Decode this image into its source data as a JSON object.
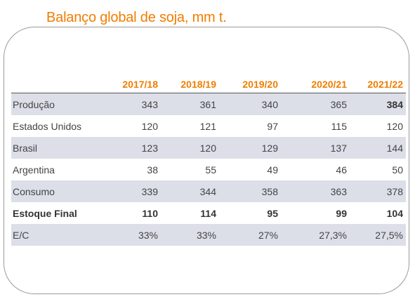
{
  "title": "Balanço global de soja, mm t.",
  "headers": [
    "",
    "2017/18",
    "2018/19",
    "2019/20",
    "2020/21",
    "2021/22"
  ],
  "rows": [
    {
      "label": "Produção",
      "values": [
        "343",
        "361",
        "340",
        "365",
        "384"
      ]
    },
    {
      "label": "Estados Unidos",
      "values": [
        "120",
        "121",
        "97",
        "115",
        "120"
      ]
    },
    {
      "label": "Brasil",
      "values": [
        "123",
        "120",
        "129",
        "137",
        "144"
      ]
    },
    {
      "label": "Argentina",
      "values": [
        "38",
        "55",
        "49",
        "46",
        "50"
      ]
    },
    {
      "label": "Consumo",
      "values": [
        "339",
        "344",
        "358",
        "363",
        "378"
      ]
    },
    {
      "label": "Estoque Final",
      "values": [
        "110",
        "114",
        "95",
        "99",
        "104"
      ]
    },
    {
      "label": "E/C",
      "values": [
        "33%",
        "33%",
        "27%",
        "27,3%",
        "27,5%"
      ]
    }
  ],
  "colors": {
    "accent": "#f07d00",
    "shade": "#dcdfe8"
  }
}
